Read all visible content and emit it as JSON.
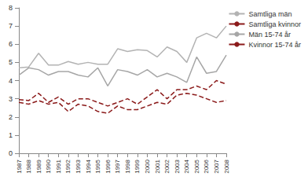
{
  "chart_data": {
    "type": "line",
    "categories": [
      "1987",
      "1988",
      "1989",
      "1990",
      "1991",
      "1992",
      "1993",
      "1994",
      "1995",
      "1996",
      "1997",
      "1998",
      "1999",
      "2000",
      "2001",
      "2002",
      "2003",
      "2004",
      "2005",
      "2006",
      "2007",
      "2008"
    ],
    "series": [
      {
        "name": "Samtliga män",
        "color": "#b3b3b3",
        "line_style": "solid",
        "values": [
          4.7,
          4.75,
          5.5,
          4.85,
          4.85,
          5.05,
          4.9,
          5.0,
          4.9,
          4.9,
          5.75,
          5.6,
          5.7,
          5.65,
          5.3,
          5.85,
          5.6,
          5.0,
          6.35,
          6.6,
          6.35,
          7.0
        ]
      },
      {
        "name": "Samtliga kvinnor",
        "color": "#8b1a1a",
        "line_style": "dashed",
        "values": [
          2.95,
          2.9,
          3.3,
          2.8,
          3.1,
          2.7,
          3.0,
          3.0,
          2.8,
          2.6,
          2.8,
          3.0,
          2.7,
          3.1,
          3.5,
          3.0,
          3.5,
          3.5,
          3.7,
          3.5,
          4.0,
          3.8
        ]
      },
      {
        "name": "Män 15-74 år",
        "color": "#a6a6a6",
        "line_style": "solid",
        "values": [
          4.3,
          4.7,
          4.6,
          4.3,
          4.5,
          4.5,
          4.3,
          4.2,
          4.7,
          3.7,
          4.6,
          4.5,
          4.3,
          4.6,
          4.2,
          4.4,
          4.2,
          3.9,
          5.3,
          4.4,
          4.5,
          5.4
        ]
      },
      {
        "name": "Kvinnor 15-74 år",
        "color": "#8b1a1a",
        "line_style": "dashed",
        "values": [
          2.8,
          2.7,
          2.9,
          2.7,
          2.8,
          2.3,
          2.7,
          2.6,
          2.3,
          2.2,
          2.6,
          2.4,
          2.4,
          2.6,
          2.8,
          2.7,
          3.2,
          3.3,
          3.2,
          3.0,
          2.8,
          2.9
        ]
      }
    ],
    "ylim": [
      0,
      8
    ],
    "yticks": [
      0,
      1,
      2,
      3,
      4,
      5,
      6,
      7,
      8
    ],
    "grid": false,
    "legend": "right"
  }
}
